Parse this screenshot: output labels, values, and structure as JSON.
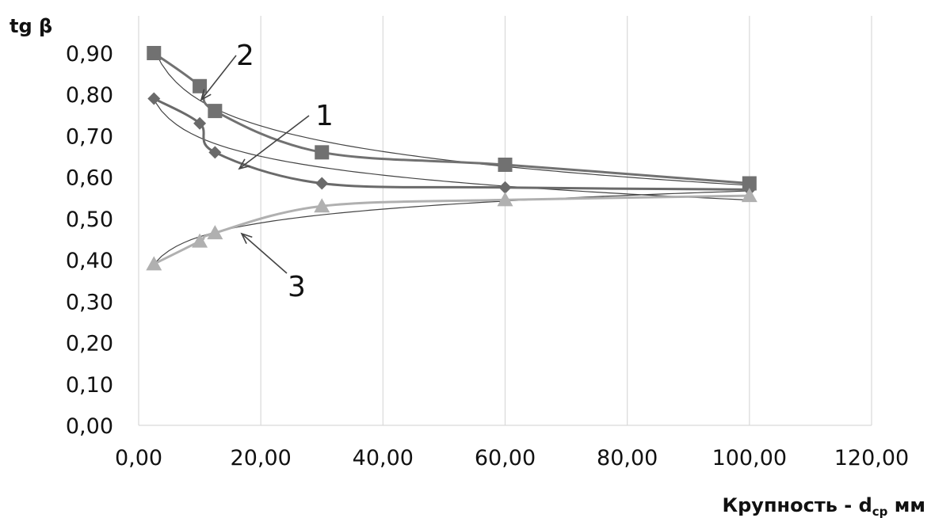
{
  "chart_data": {
    "type": "line",
    "ylabel": "tg β",
    "xlabel": {
      "main": "Крупность - d",
      "sub": "ср",
      "unit": " мм"
    },
    "xlim": [
      0,
      120
    ],
    "ylim": [
      0,
      0.95
    ],
    "xticks": [
      "0,00",
      "20,00",
      "40,00",
      "60,00",
      "80,00",
      "100,00",
      "120,00"
    ],
    "xtick_values": [
      0,
      20,
      40,
      60,
      80,
      100,
      120
    ],
    "yticks": [
      "0,00",
      "0,10",
      "0,20",
      "0,30",
      "0,40",
      "0,50",
      "0,60",
      "0,70",
      "0,80",
      "0,90"
    ],
    "ytick_values": [
      0,
      0.1,
      0.2,
      0.3,
      0.4,
      0.5,
      0.6,
      0.7,
      0.8,
      0.9
    ],
    "grid": {
      "vertical": true,
      "horizontal": false
    },
    "series": [
      {
        "label": "1",
        "marker": "diamond",
        "color": "#6a6a6a",
        "x": [
          2.5,
          10,
          12.5,
          30,
          60,
          100
        ],
        "y": [
          0.79,
          0.73,
          0.66,
          0.585,
          0.575,
          0.57
        ]
      },
      {
        "label": "2",
        "marker": "square",
        "color": "#717171",
        "x": [
          2.5,
          10,
          12.5,
          30,
          60,
          100
        ],
        "y": [
          0.9,
          0.82,
          0.76,
          0.66,
          0.63,
          0.585
        ]
      },
      {
        "label": "3",
        "marker": "triangle",
        "color": "#b0b0b0",
        "x": [
          2.5,
          10,
          12.5,
          30,
          60,
          100
        ],
        "y": [
          0.39,
          0.445,
          0.465,
          0.53,
          0.545,
          0.555
        ]
      }
    ]
  }
}
